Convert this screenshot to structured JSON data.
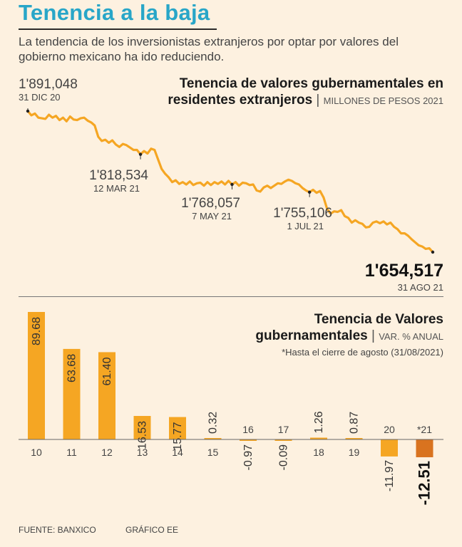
{
  "header": {
    "title": "Tenencia a la baja",
    "subtitle": "La tendencia de los inversionistas extranjeros por optar por valores del gobierno mexicano ha ido reduciendo."
  },
  "line_chart": {
    "title_line1": "Tenencia de valores gubernamentales en",
    "title_line2": "residentes extranjeros",
    "unit": "MILLONES DE PESOS 2021"
  },
  "bar_chart": {
    "title_line1": "Tenencia de Valores",
    "title_line2": "gubernamentales",
    "unit": "VAR. % ANUAL",
    "note": "*Hasta el cierre de agosto (31/08/2021)"
  },
  "footer": {
    "source": "FUENTE: BANXICO",
    "credit": "GRÁFICO EE"
  },
  "colors": {
    "accent": "#28a6c8",
    "bar": "#f5a623",
    "bar_highlight": "#d9731f",
    "line": "#f5a623",
    "background": "#fdf1e0"
  },
  "chart_data": [
    {
      "type": "line",
      "title": "Tenencia de valores gubernamentales en residentes extranjeros",
      "ylabel": "Millones de pesos 2021",
      "ylim": [
        1640000,
        1900000
      ],
      "series": [
        {
          "name": "Tenencia",
          "values": [
            1891048,
            1884000,
            1887000,
            1880000,
            1879000,
            1878000,
            1885000,
            1880000,
            1883000,
            1876000,
            1880000,
            1874000,
            1882000,
            1877000,
            1876000,
            1879000,
            1880000,
            1875000,
            1872000,
            1867000,
            1848000,
            1841000,
            1843000,
            1838000,
            1842000,
            1835000,
            1831000,
            1836000,
            1834000,
            1830000,
            1826000,
            1826000,
            1818534,
            1824000,
            1820000,
            1828000,
            1826000,
            1810000,
            1794000,
            1786000,
            1780000,
            1772000,
            1775000,
            1769000,
            1772000,
            1768000,
            1773000,
            1767000,
            1770000,
            1771000,
            1766000,
            1772000,
            1767000,
            1772000,
            1769000,
            1773000,
            1768000,
            1774000,
            1768057,
            1772000,
            1766000,
            1771000,
            1770000,
            1767000,
            1768000,
            1758000,
            1756000,
            1763000,
            1766000,
            1762000,
            1766000,
            1770000,
            1769000,
            1773000,
            1776000,
            1774000,
            1770000,
            1768000,
            1762000,
            1758000,
            1755106,
            1759000,
            1754000,
            1757000,
            1746000,
            1727000,
            1719000,
            1723000,
            1722000,
            1725000,
            1715000,
            1712000,
            1704000,
            1708000,
            1704000,
            1702000,
            1696000,
            1697000,
            1704000,
            1706000,
            1703000,
            1706000,
            1701000,
            1704000,
            1697000,
            1693000,
            1686000,
            1686000,
            1682000,
            1676000,
            1671000,
            1666000,
            1664000,
            1660000,
            1661000,
            1654517
          ]
        }
      ],
      "annotations": [
        {
          "label": "1'891,048",
          "date": "31 DIC 20",
          "index": 0,
          "value": 1891048
        },
        {
          "label": "1'818,534",
          "date": "12 MAR 21",
          "index": 32,
          "value": 1818534
        },
        {
          "label": "1'768,057",
          "date": "7 MAY 21",
          "index": 58,
          "value": 1768057
        },
        {
          "label": "1'755,106",
          "date": "1 JUL 21",
          "index": 80,
          "value": 1755106
        },
        {
          "label": "1'654,517",
          "date": "31 AGO 21",
          "index": 115,
          "value": 1654517
        }
      ]
    },
    {
      "type": "bar",
      "title": "Tenencia de Valores gubernamentales",
      "ylabel": "VAR. % ANUAL",
      "ylim": [
        -15,
        95
      ],
      "categories": [
        "10",
        "11",
        "12",
        "13",
        "14",
        "15",
        "16",
        "17",
        "18",
        "19",
        "20",
        "*21"
      ],
      "values": [
        89.68,
        63.68,
        61.4,
        16.53,
        15.77,
        0.32,
        -0.97,
        -0.09,
        1.26,
        0.87,
        -11.97,
        -12.51
      ],
      "value_labels": [
        "89.68",
        "63.68",
        "61.40",
        "16.53",
        "15.77",
        "0.32",
        "-0.97",
        "-0.09",
        "1.26",
        "0.87",
        "-11.97",
        "-12.51"
      ]
    }
  ]
}
